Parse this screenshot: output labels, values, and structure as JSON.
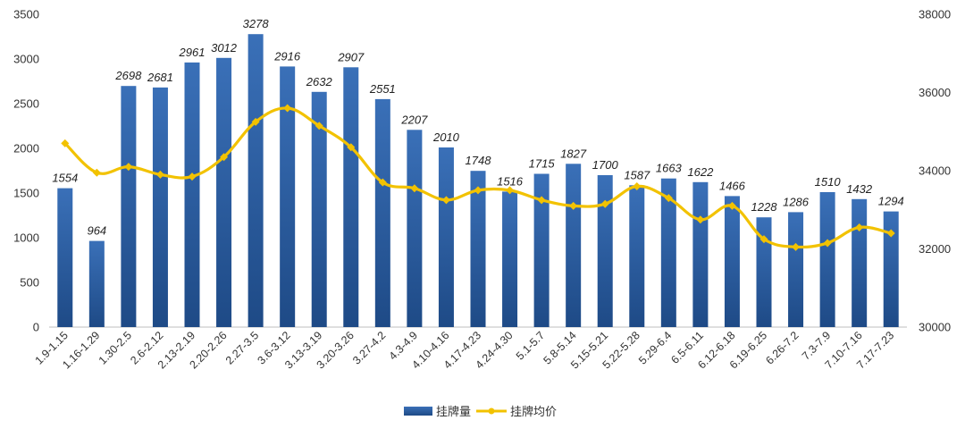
{
  "chart_data": {
    "type": "bar",
    "categories": [
      "1.9-1.15",
      "1.16-1.29",
      "1.30-2.5",
      "2.6-2.12",
      "2.13-2.19",
      "2.20-2.26",
      "2.27-3.5",
      "3.6-3.12",
      "3.13-3.19",
      "3.20-3.26",
      "3.27-4.2",
      "4.3-4.9",
      "4.10-4.16",
      "4.17-4.23",
      "4.24-4.30",
      "5.1-5.7",
      "5.8-5.14",
      "5.15-5.21",
      "5.22-5.28",
      "5.29-6.4",
      "6.5-6.11",
      "6.12-6.18",
      "6.19-6.25",
      "6.26-7.2",
      "7.3-7.9",
      "7.10-7.16",
      "7.17-7.23"
    ],
    "series": [
      {
        "name": "挂牌量",
        "type": "bar",
        "axis": "left",
        "color": "#2E5FA6",
        "values": [
          1554,
          964,
          2698,
          2681,
          2961,
          3012,
          3278,
          2916,
          2632,
          2907,
          2551,
          2207,
          2010,
          1748,
          1516,
          1715,
          1827,
          1700,
          1587,
          1663,
          1622,
          1466,
          1228,
          1286,
          1510,
          1432,
          1294
        ],
        "value_labels": [
          "1554",
          "964",
          "2698",
          "2681",
          "2961",
          "3012",
          "3278",
          "2916",
          "2632",
          "2907",
          "2551",
          "2207",
          "2010",
          "1748",
          "1516",
          "1715",
          "1827",
          "1700",
          "1587",
          "1663",
          "1622",
          "1466",
          "1228",
          "1286",
          "1510",
          "1432",
          "1294"
        ]
      },
      {
        "name": "挂牌均价",
        "type": "line",
        "axis": "right",
        "color": "#F2C200",
        "values": [
          34700,
          33950,
          34100,
          33900,
          33850,
          34350,
          35250,
          35600,
          35150,
          34600,
          33700,
          33550,
          33250,
          33500,
          33500,
          33250,
          33100,
          33150,
          33600,
          33300,
          32750,
          33100,
          32250,
          32050,
          32150,
          32550,
          32400
        ]
      }
    ],
    "y_left": {
      "min": 0,
      "max": 3500,
      "ticks": [
        "0",
        "500",
        "1000",
        "1500",
        "2000",
        "2500",
        "3000",
        "3500"
      ]
    },
    "y_right": {
      "min": 30000,
      "max": 38000,
      "ticks": [
        "30000",
        "32000",
        "34000",
        "36000",
        "38000"
      ]
    },
    "grid": false,
    "legend": "bottom-center"
  }
}
